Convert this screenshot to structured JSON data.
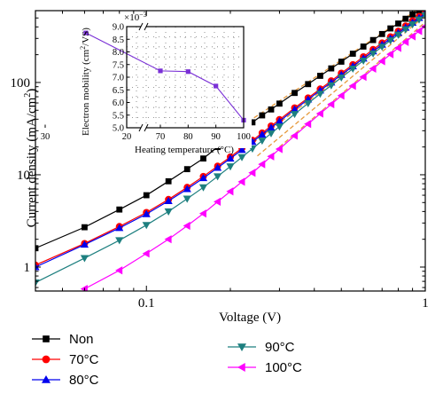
{
  "chart_data": [
    {
      "type": "line",
      "xlabel": "Voltage (V)",
      "ylabel_main": "Current density (mA/cm",
      "ylabel_sup": "2",
      "ylabel_end": ")",
      "xscale": "log",
      "yscale": "log",
      "xlim": [
        0.04,
        1.0
      ],
      "ylim": [
        0.55,
        600
      ],
      "xticks": [
        {
          "v": 0.1,
          "label": "0.1"
        },
        {
          "v": 1,
          "label": "1"
        }
      ],
      "yticks": [
        {
          "v": 1,
          "label": "1"
        },
        {
          "v": 10,
          "label": "10"
        },
        {
          "v": 100,
          "label": "100"
        }
      ],
      "legend_position": "bottom",
      "series": [
        {
          "name": "Non",
          "color": "#000000",
          "marker": "square",
          "x": [
            0.04,
            0.06,
            0.08,
            0.1,
            0.12,
            0.14,
            0.16,
            0.18,
            0.2,
            0.22,
            0.24,
            0.26,
            0.28,
            0.3,
            0.34,
            0.38,
            0.42,
            0.46,
            0.5,
            0.55,
            0.6,
            0.65,
            0.7,
            0.75,
            0.8,
            0.85,
            0.9,
            0.95,
            1.0
          ],
          "y": [
            1.6,
            2.7,
            4.2,
            6.0,
            8.5,
            11.5,
            15.0,
            20.0,
            25.0,
            34.0,
            37.0,
            44.0,
            51.0,
            59.0,
            77.0,
            96.0,
            118.0,
            142.0,
            168.0,
            205.0,
            245.0,
            288.0,
            335.0,
            385.0,
            435.0,
            490.0,
            545.0,
            600.0,
            640.0
          ]
        },
        {
          "name": "70°C",
          "color": "#ff0000",
          "marker": "circle",
          "x": [
            0.04,
            0.06,
            0.08,
            0.1,
            0.12,
            0.14,
            0.16,
            0.18,
            0.2,
            0.22,
            0.24,
            0.26,
            0.28,
            0.3,
            0.34,
            0.38,
            0.42,
            0.46,
            0.5,
            0.55,
            0.6,
            0.65,
            0.7,
            0.75,
            0.8,
            0.85,
            0.9,
            0.95,
            1.0
          ],
          "y": [
            1.05,
            1.8,
            2.75,
            3.9,
            5.4,
            7.3,
            9.6,
            12.4,
            15.6,
            19.4,
            23.6,
            28.4,
            33.8,
            39.6,
            53.0,
            68.0,
            85.0,
            104.0,
            126.0,
            156.0,
            190.0,
            228.0,
            268.0,
            312.0,
            360.0,
            410.0,
            465.0,
            520.0,
            580.0
          ]
        },
        {
          "name": "80°C",
          "color": "#0000ee",
          "marker": "triangle-up",
          "x": [
            0.04,
            0.06,
            0.08,
            0.1,
            0.12,
            0.14,
            0.16,
            0.18,
            0.2,
            0.22,
            0.24,
            0.26,
            0.28,
            0.3,
            0.34,
            0.38,
            0.42,
            0.46,
            0.5,
            0.55,
            0.6,
            0.65,
            0.7,
            0.75,
            0.8,
            0.85,
            0.9,
            0.95,
            1.0
          ],
          "y": [
            1.0,
            1.75,
            2.65,
            3.75,
            5.2,
            7.0,
            9.2,
            11.9,
            15.0,
            18.6,
            22.7,
            27.3,
            32.4,
            38.0,
            51.0,
            65.5,
            82.0,
            100.0,
            121.0,
            150.0,
            182.0,
            218.0,
            257.0,
            299.0,
            345.0,
            393.0,
            445.0,
            500.0,
            560.0
          ]
        },
        {
          "name": "90°C",
          "color": "#1d7f7f",
          "marker": "triangle-down",
          "x": [
            0.04,
            0.06,
            0.08,
            0.1,
            0.12,
            0.14,
            0.16,
            0.18,
            0.2,
            0.22,
            0.24,
            0.26,
            0.28,
            0.3,
            0.34,
            0.38,
            0.42,
            0.46,
            0.5,
            0.55,
            0.6,
            0.65,
            0.7,
            0.75,
            0.8,
            0.85,
            0.9,
            0.95,
            1.0
          ],
          "y": [
            0.68,
            1.25,
            1.95,
            2.85,
            4.0,
            5.5,
            7.3,
            9.6,
            12.3,
            15.5,
            19.2,
            23.4,
            28.1,
            33.3,
            45.5,
            59.5,
            75.5,
            93.0,
            113.0,
            141.0,
            172.0,
            206.0,
            244.0,
            285.0,
            329.0,
            376.0,
            426.0,
            480.0,
            535.0
          ]
        },
        {
          "name": "100°C",
          "color": "#ff00ff",
          "marker": "triangle-left",
          "x": [
            0.06,
            0.08,
            0.1,
            0.12,
            0.14,
            0.16,
            0.18,
            0.2,
            0.22,
            0.24,
            0.26,
            0.28,
            0.3,
            0.34,
            0.38,
            0.42,
            0.46,
            0.5,
            0.55,
            0.6,
            0.65,
            0.7,
            0.75,
            0.8,
            0.85,
            0.9,
            0.95,
            1.0
          ],
          "y": [
            0.58,
            0.92,
            1.4,
            2.0,
            2.8,
            3.8,
            5.1,
            6.6,
            8.4,
            10.5,
            13.0,
            15.8,
            19.0,
            26.5,
            35.5,
            46.0,
            58.0,
            72.0,
            92.0,
            115.0,
            141.0,
            170.0,
            202.0,
            237.0,
            275.0,
            316.0,
            360.0,
            405.0
          ]
        }
      ],
      "fit_lines": {
        "color": "#e69a3c",
        "dash": "dashed",
        "segments": [
          {
            "x": [
              0.2,
              1.0
            ],
            "y": [
              28,
              700
            ]
          },
          {
            "x": [
              0.22,
              1.0
            ],
            "y": [
              18,
              575
            ]
          },
          {
            "x": [
              0.25,
              1.0
            ],
            "y": [
              16,
              530
            ]
          },
          {
            "x": [
              0.3,
              1.0
            ],
            "y": [
              20,
              450
            ]
          }
        ]
      }
    },
    {
      "type": "line",
      "xlabel": "Heating temperature (°C)",
      "ylabel_main": "Electron mobility (cm",
      "ylabel_sup": "2",
      "ylabel_end": "/VS)",
      "multiplier_base": "×10",
      "multiplier_exp": "−3",
      "xscale": "broken",
      "xlim": [
        20,
        100
      ],
      "ylim": [
        5.0,
        9.0
      ],
      "xticks": [
        {
          "v": 20,
          "label": "20"
        },
        {
          "v": 30,
          "label": "30"
        },
        {
          "v": 70,
          "label": "70"
        },
        {
          "v": 80,
          "label": "80"
        },
        {
          "v": 90,
          "label": "90"
        },
        {
          "v": 100,
          "label": "100"
        }
      ],
      "yticks": [
        {
          "v": 5.0,
          "label": "5.0"
        },
        {
          "v": 5.5,
          "label": "5.5"
        },
        {
          "v": 6.0,
          "label": "6.0"
        },
        {
          "v": 6.5,
          "label": "6.5"
        },
        {
          "v": 7.0,
          "label": "7.0"
        },
        {
          "v": 7.5,
          "label": "7.5"
        },
        {
          "v": 8.0,
          "label": "8.0"
        },
        {
          "v": 8.5,
          "label": "8.5"
        },
        {
          "v": 9.0,
          "label": "9.0"
        }
      ],
      "grid": true,
      "axis_break": true,
      "series": [
        {
          "color": "#7a30d6",
          "marker": "square",
          "x": [
            25,
            70,
            80,
            90,
            100
          ],
          "y": [
            8.75,
            7.25,
            7.22,
            6.65,
            5.3
          ]
        }
      ]
    }
  ]
}
